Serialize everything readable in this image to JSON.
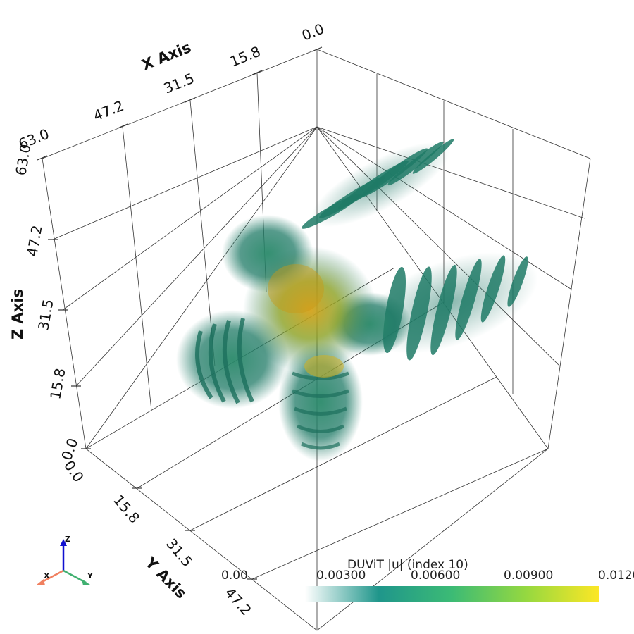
{
  "chart_data": {
    "type": "volume",
    "x_axis": {
      "title": "X Axis",
      "ticks": [
        "0.0",
        "15.8",
        "31.5",
        "47.2",
        "63.0"
      ]
    },
    "y_axis": {
      "title": "Y Axis",
      "ticks": [
        "0.0",
        "15.8",
        "31.5",
        "47.2"
      ]
    },
    "z_axis": {
      "title": "Z Axis",
      "ticks": [
        "0.0",
        "15.8",
        "31.5",
        "47.2",
        "63.0"
      ]
    },
    "colorbar": {
      "title": "DUViT |u| (index 10)",
      "tick_labels": [
        "0.00",
        "0.00300",
        "0.00600",
        "0.00900",
        "0.0120"
      ],
      "range": [
        0.0,
        0.012
      ],
      "colormap": [
        "#ffffff",
        "#1f968b",
        "#3cbb75",
        "#95d840",
        "#fde725"
      ]
    },
    "grid": true,
    "orientation_axes": [
      "Z",
      "X",
      "Y"
    ]
  }
}
